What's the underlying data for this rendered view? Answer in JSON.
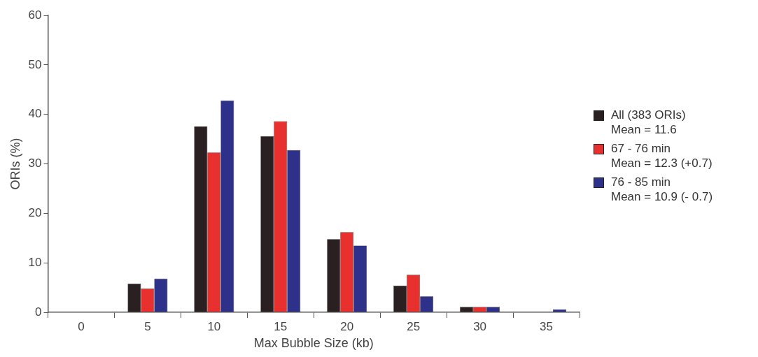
{
  "chart_data": {
    "type": "bar",
    "xlabel": "Max Bubble Size (kb)",
    "ylabel": "ORIs (%)",
    "categories": [
      "0",
      "5",
      "10",
      "15",
      "20",
      "25",
      "30",
      "35"
    ],
    "series": [
      {
        "name": "All (383 ORIs)\nMean = 11.6",
        "color": "#2a2022",
        "values": [
          0,
          5.8,
          37.6,
          35.6,
          14.8,
          5.4,
          1.1,
          null
        ]
      },
      {
        "name": "67 - 76 min\nMean = 12.3 (+0.7)",
        "color": "#e8302e",
        "values": [
          0,
          4.8,
          32.3,
          38.6,
          16.2,
          7.6,
          1.1,
          null
        ]
      },
      {
        "name": "76 - 85 min\nMean = 10.9 (- 0.7)",
        "color": "#2e3189",
        "values": [
          0,
          6.8,
          42.8,
          32.8,
          13.5,
          3.2,
          1.1,
          0.6
        ]
      }
    ],
    "ylim": [
      0,
      60
    ],
    "yticks": [
      0,
      10,
      20,
      30,
      40,
      50,
      60
    ],
    "grid": false,
    "legend": "right"
  }
}
